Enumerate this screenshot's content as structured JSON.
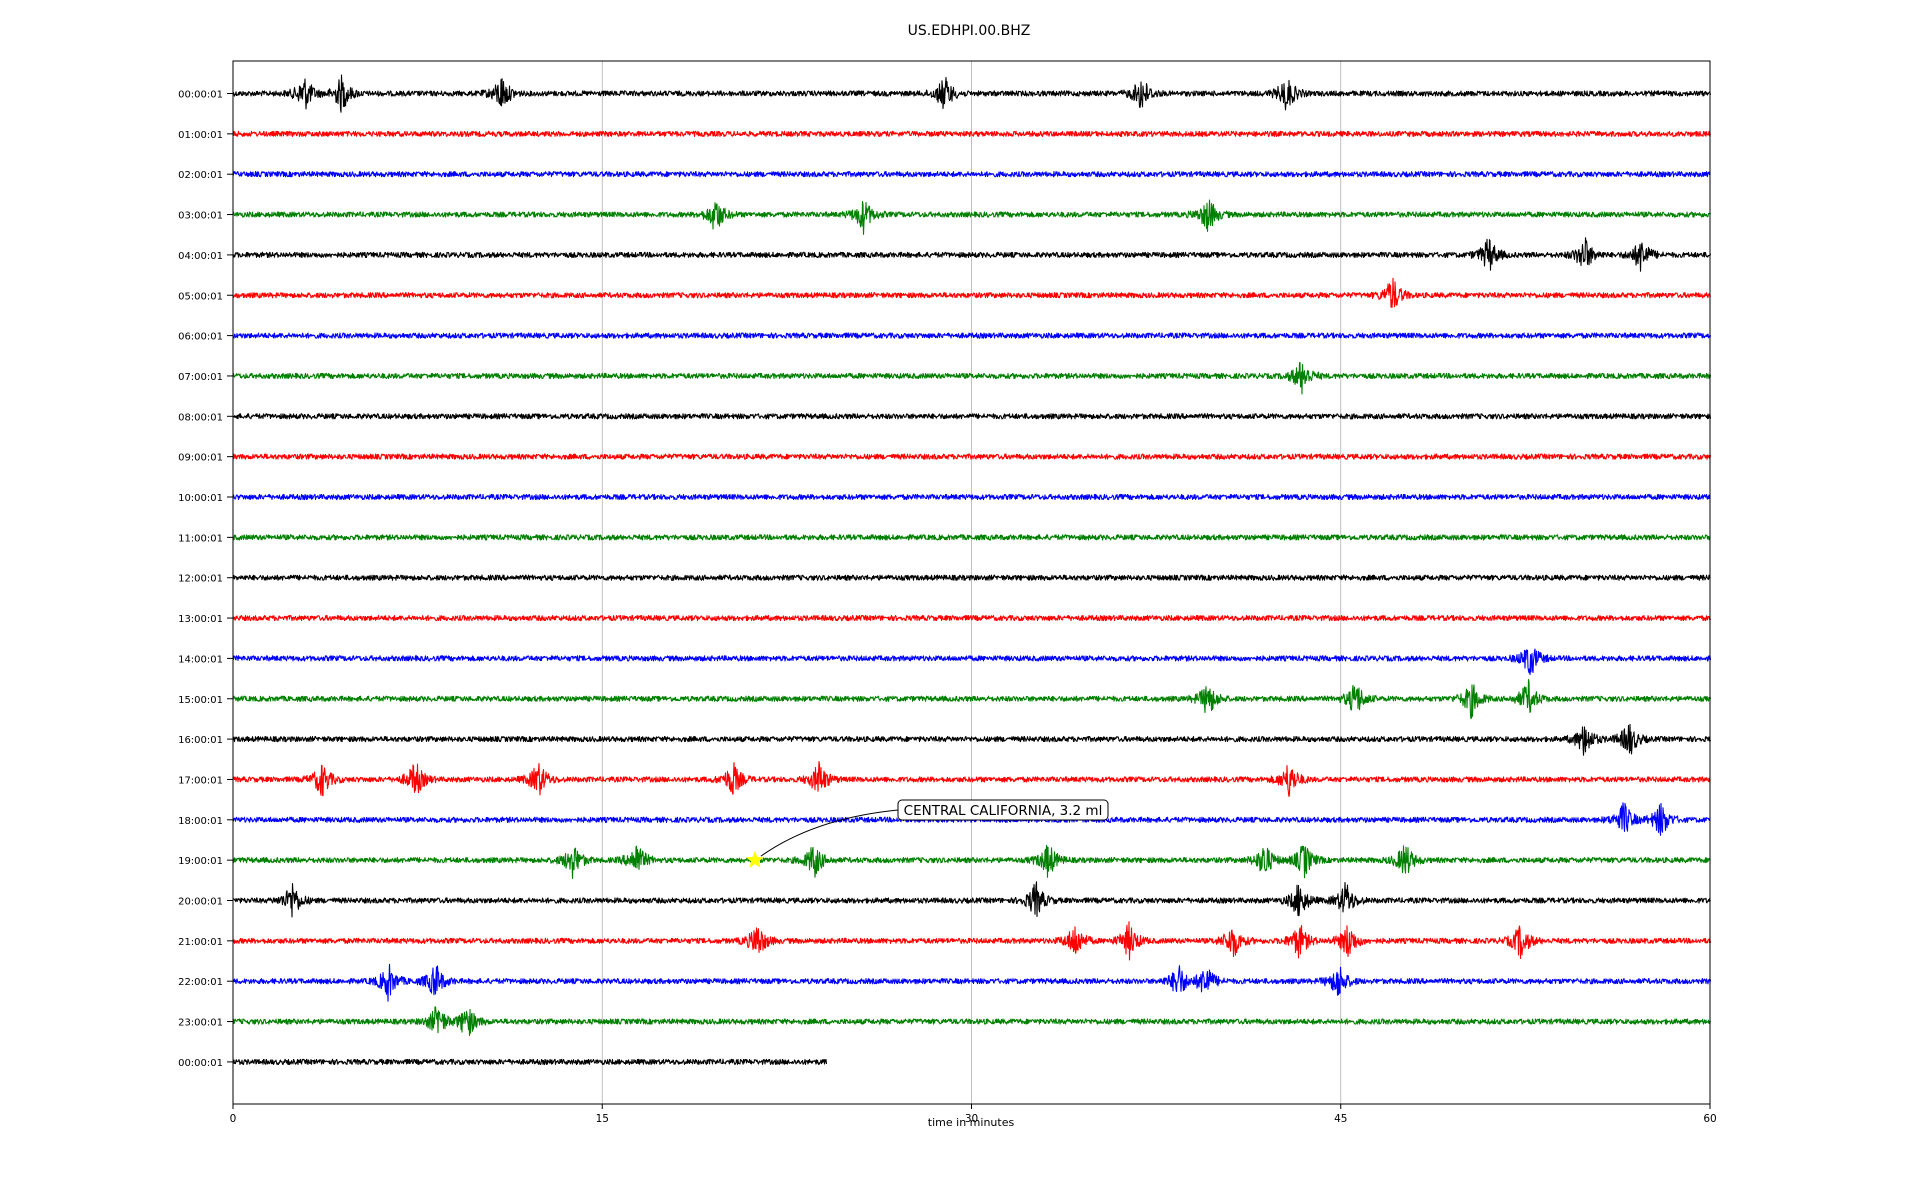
{
  "chart_data": {
    "type": "line",
    "title": "US.EDHPI.00.BHZ",
    "xlabel": "time in minutes",
    "ylabel": "",
    "xlim": [
      0,
      60
    ],
    "x_ticks": [
      0,
      15,
      30,
      45,
      60
    ],
    "grid": "vertical",
    "row_labels": [
      "00:00:01",
      "01:00:01",
      "02:00:01",
      "03:00:01",
      "04:00:01",
      "05:00:01",
      "06:00:01",
      "07:00:01",
      "08:00:01",
      "09:00:01",
      "10:00:01",
      "11:00:01",
      "12:00:01",
      "13:00:01",
      "14:00:01",
      "15:00:01",
      "16:00:01",
      "17:00:01",
      "18:00:01",
      "19:00:01",
      "20:00:01",
      "21:00:01",
      "22:00:01",
      "23:00:01",
      "00:00:01"
    ],
    "row_colors": [
      "#000000",
      "#ff0000",
      "#0000ff",
      "#008000"
    ],
    "last_row_end_minute": 24.1,
    "event_annotation": {
      "label": "CENTRAL CALIFORNIA, 3.2 ml",
      "row_index": 19,
      "minute": 21.2,
      "marker": "star",
      "marker_color": "#ffff00"
    },
    "notable_signals": [
      {
        "row": 0,
        "minutes": [
          2.9,
          4.4,
          10.9,
          28.9,
          36.9,
          42.8
        ]
      },
      {
        "row": 3,
        "minutes": [
          19.6,
          25.6,
          39.6
        ]
      },
      {
        "row": 4,
        "minutes": [
          51.0,
          54.9,
          57.2
        ]
      },
      {
        "row": 5,
        "minutes": [
          47.1
        ]
      },
      {
        "row": 7,
        "minutes": [
          43.4
        ]
      },
      {
        "row": 14,
        "minutes": [
          52.7
        ]
      },
      {
        "row": 15,
        "minutes": [
          39.6,
          45.6,
          50.3,
          52.6
        ]
      },
      {
        "row": 16,
        "minutes": [
          54.9,
          56.7
        ]
      },
      {
        "row": 17,
        "minutes": [
          3.6,
          7.4,
          12.4,
          20.3,
          23.8,
          42.9
        ]
      },
      {
        "row": 18,
        "minutes": [
          56.5,
          58.0
        ]
      },
      {
        "row": 19,
        "minutes": [
          13.8,
          16.4,
          23.6,
          33.1,
          41.9,
          43.5,
          47.6
        ]
      },
      {
        "row": 20,
        "minutes": [
          2.4,
          32.6,
          43.3,
          45.2
        ]
      },
      {
        "row": 21,
        "minutes": [
          21.3,
          34.2,
          36.4,
          40.6,
          43.3,
          45.3,
          52.3
        ]
      },
      {
        "row": 22,
        "minutes": [
          6.3,
          8.2,
          38.4,
          39.5,
          44.9
        ]
      },
      {
        "row": 23,
        "minutes": [
          8.3,
          9.5
        ]
      }
    ]
  }
}
